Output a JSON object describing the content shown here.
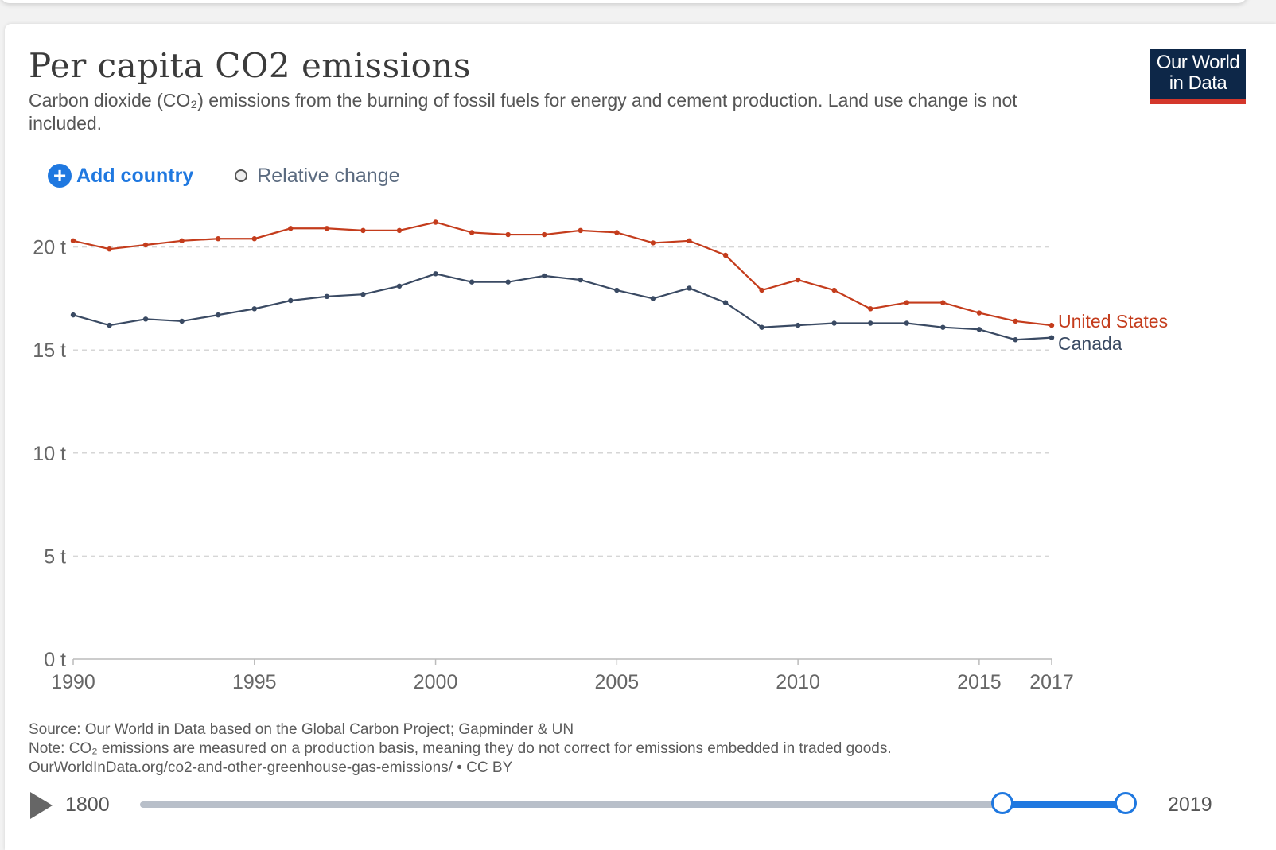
{
  "header": {
    "title": "Per capita CO2 emissions",
    "subtitle": "Carbon dioxide (CO₂) emissions from the burning of fossil fuels for energy and cement production. Land use change is not included.",
    "logo_text": "Our World\nin Data"
  },
  "controls": {
    "add_country_label": "Add country",
    "relative_change_label": "Relative change"
  },
  "colors": {
    "united_states": "#c43c1c",
    "canada": "#3a4a63",
    "accent": "#1f78e0"
  },
  "chart_data": {
    "type": "line",
    "x": [
      1990,
      1991,
      1992,
      1993,
      1994,
      1995,
      1996,
      1997,
      1998,
      1999,
      2000,
      2001,
      2002,
      2003,
      2004,
      2005,
      2006,
      2007,
      2008,
      2009,
      2010,
      2011,
      2012,
      2013,
      2014,
      2015,
      2016,
      2017
    ],
    "series": [
      {
        "name": "United States",
        "values": [
          20.3,
          19.9,
          20.1,
          20.3,
          20.4,
          20.4,
          20.9,
          20.9,
          20.8,
          20.8,
          21.2,
          20.7,
          20.6,
          20.6,
          20.8,
          20.7,
          20.2,
          20.3,
          19.6,
          17.9,
          18.4,
          17.9,
          17.0,
          17.3,
          17.3,
          16.8,
          16.4,
          16.2
        ]
      },
      {
        "name": "Canada",
        "values": [
          16.7,
          16.2,
          16.5,
          16.4,
          16.7,
          17.0,
          17.4,
          17.6,
          17.7,
          18.1,
          18.7,
          18.3,
          18.3,
          18.6,
          18.4,
          17.9,
          17.5,
          18.0,
          17.3,
          16.1,
          16.2,
          16.3,
          16.3,
          16.3,
          16.1,
          16.0,
          15.5,
          15.6
        ]
      }
    ],
    "y_ticks": [
      "0 t",
      "5 t",
      "10 t",
      "15 t",
      "20 t"
    ],
    "y_tick_values": [
      0,
      5,
      10,
      15,
      20
    ],
    "x_ticks": [
      "1990",
      "1995",
      "2000",
      "2005",
      "2010",
      "2015",
      "2017"
    ],
    "x_tick_values": [
      1990,
      1995,
      2000,
      2005,
      2010,
      2015,
      2017
    ],
    "xlim": [
      1990,
      2017
    ],
    "ylim": [
      0,
      21.2
    ],
    "grid": "horizontal dashed",
    "legend": "right, inline labels at line ends"
  },
  "footer": {
    "source": "Source: Our World in Data based on the Global Carbon Project; Gapminder & UN",
    "note": "Note: CO₂ emissions are measured on a production basis, meaning they do not correct for emissions embedded in traded goods.",
    "link": "OurWorldInData.org/co2-and-other-greenhouse-gas-emissions/ • CC BY"
  },
  "timeline": {
    "start_label": "1800",
    "end_label": "2019",
    "range_start": 1990,
    "range_end": 2017
  }
}
